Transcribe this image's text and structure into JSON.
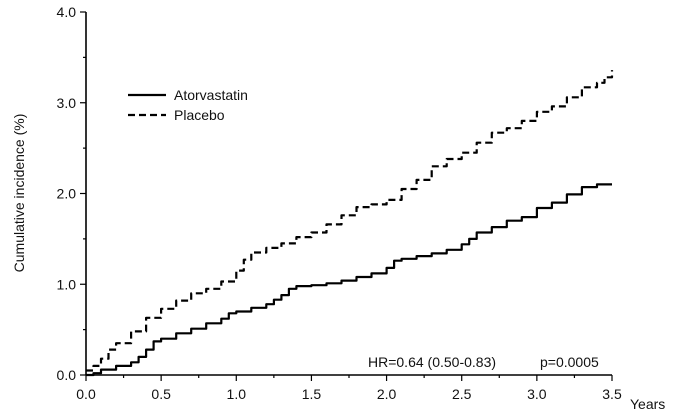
{
  "chart_data": {
    "type": "line",
    "step": true,
    "xlabel": "Years",
    "ylabel": "Cumulative incidence (%)",
    "xlim": [
      0,
      3.5
    ],
    "ylim": [
      0,
      4.0
    ],
    "x_ticks": [
      0,
      0.5,
      1.0,
      1.5,
      2.0,
      2.5,
      3.0,
      3.5
    ],
    "x_tick_labels": [
      "0.0",
      "0.5",
      "1.0",
      "1.5",
      "2.0",
      "2.5",
      "3.0",
      "3.5"
    ],
    "y_ticks": [
      0,
      1.0,
      2.0,
      3.0,
      4.0
    ],
    "y_tick_labels": [
      "0.0",
      "1.0",
      "2.0",
      "3.0",
      "4.0"
    ],
    "grid": false,
    "legend_position": "upper-left",
    "series": [
      {
        "name": "Atorvastatin",
        "style": "solid",
        "color": "#000000",
        "points": [
          [
            0.0,
            0.0
          ],
          [
            0.05,
            0.02
          ],
          [
            0.1,
            0.06
          ],
          [
            0.2,
            0.1
          ],
          [
            0.3,
            0.14
          ],
          [
            0.35,
            0.2
          ],
          [
            0.4,
            0.28
          ],
          [
            0.45,
            0.37
          ],
          [
            0.5,
            0.4
          ],
          [
            0.6,
            0.46
          ],
          [
            0.7,
            0.51
          ],
          [
            0.8,
            0.57
          ],
          [
            0.9,
            0.62
          ],
          [
            0.95,
            0.68
          ],
          [
            1.0,
            0.7
          ],
          [
            1.1,
            0.74
          ],
          [
            1.2,
            0.78
          ],
          [
            1.25,
            0.83
          ],
          [
            1.3,
            0.88
          ],
          [
            1.35,
            0.95
          ],
          [
            1.4,
            0.98
          ],
          [
            1.5,
            0.99
          ],
          [
            1.6,
            1.01
          ],
          [
            1.7,
            1.04
          ],
          [
            1.8,
            1.08
          ],
          [
            1.9,
            1.12
          ],
          [
            2.0,
            1.18
          ],
          [
            2.05,
            1.26
          ],
          [
            2.1,
            1.28
          ],
          [
            2.2,
            1.31
          ],
          [
            2.3,
            1.34
          ],
          [
            2.4,
            1.38
          ],
          [
            2.5,
            1.44
          ],
          [
            2.55,
            1.5
          ],
          [
            2.6,
            1.57
          ],
          [
            2.7,
            1.63
          ],
          [
            2.8,
            1.7
          ],
          [
            2.9,
            1.74
          ],
          [
            3.0,
            1.84
          ],
          [
            3.1,
            1.9
          ],
          [
            3.2,
            1.99
          ],
          [
            3.3,
            2.07
          ],
          [
            3.4,
            2.1
          ],
          [
            3.5,
            2.1
          ]
        ]
      },
      {
        "name": "Placebo",
        "style": "dashed",
        "color": "#000000",
        "points": [
          [
            0.0,
            0.05
          ],
          [
            0.05,
            0.1
          ],
          [
            0.1,
            0.18
          ],
          [
            0.15,
            0.28
          ],
          [
            0.2,
            0.35
          ],
          [
            0.3,
            0.48
          ],
          [
            0.4,
            0.63
          ],
          [
            0.5,
            0.73
          ],
          [
            0.6,
            0.82
          ],
          [
            0.7,
            0.9
          ],
          [
            0.8,
            0.95
          ],
          [
            0.9,
            1.03
          ],
          [
            1.0,
            1.15
          ],
          [
            1.05,
            1.27
          ],
          [
            1.1,
            1.35
          ],
          [
            1.2,
            1.4
          ],
          [
            1.3,
            1.45
          ],
          [
            1.4,
            1.52
          ],
          [
            1.5,
            1.57
          ],
          [
            1.6,
            1.66
          ],
          [
            1.7,
            1.76
          ],
          [
            1.8,
            1.85
          ],
          [
            1.9,
            1.88
          ],
          [
            2.0,
            1.93
          ],
          [
            2.1,
            2.05
          ],
          [
            2.2,
            2.15
          ],
          [
            2.3,
            2.3
          ],
          [
            2.4,
            2.38
          ],
          [
            2.5,
            2.45
          ],
          [
            2.6,
            2.56
          ],
          [
            2.7,
            2.67
          ],
          [
            2.8,
            2.72
          ],
          [
            2.9,
            2.8
          ],
          [
            3.0,
            2.9
          ],
          [
            3.1,
            2.96
          ],
          [
            3.2,
            3.06
          ],
          [
            3.3,
            3.17
          ],
          [
            3.4,
            3.22
          ],
          [
            3.45,
            3.28
          ],
          [
            3.5,
            3.36
          ]
        ]
      }
    ],
    "annotations": [
      {
        "text": "HR=0.64 (0.50-0.83)"
      },
      {
        "text": "p=0.0005"
      }
    ]
  }
}
